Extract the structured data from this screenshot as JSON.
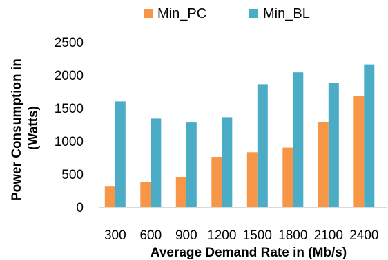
{
  "chart_data": {
    "type": "bar",
    "title": "",
    "xlabel": "Average Demand Rate in (Mb/s)",
    "ylabel": "Power Consumption in (Watts)",
    "ylabel_lines": [
      "Power Consumption in",
      "(Watts)"
    ],
    "categories": [
      "300",
      "600",
      "900",
      "1200",
      "1500",
      "1800",
      "2100",
      "2400"
    ],
    "ylim": [
      0,
      2500
    ],
    "yticks": [
      0,
      500,
      1000,
      1500,
      2000,
      2500
    ],
    "grid": false,
    "legend_position": "top",
    "series": [
      {
        "name": "Min_PC",
        "color": "#F79646",
        "values": [
          310,
          380,
          450,
          760,
          830,
          900,
          1290,
          1680
        ]
      },
      {
        "name": "Min_BL",
        "color": "#4BACC6",
        "values": [
          1600,
          1340,
          1280,
          1360,
          1860,
          2040,
          1880,
          2160
        ]
      }
    ]
  }
}
